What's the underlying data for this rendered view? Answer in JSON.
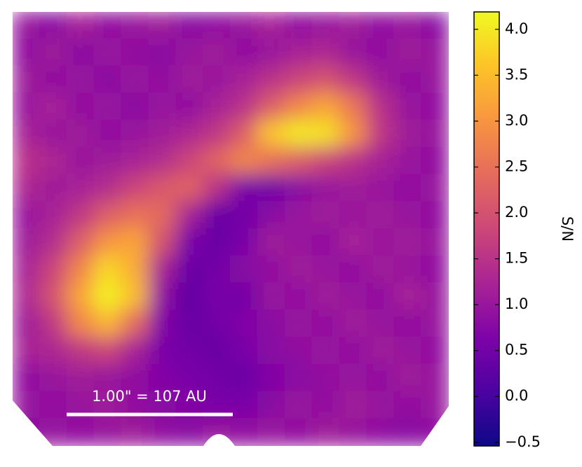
{
  "chart_data": {
    "type": "heatmap",
    "values": [
      [
        1.0,
        0.8,
        1.2,
        0.9,
        1.0,
        1.1,
        0.8,
        0.9,
        1.0,
        1.2,
        0.9,
        1.0,
        1.1,
        0.9,
        1.0,
        0.8
      ],
      [
        0.9,
        1.1,
        0.8,
        1.0,
        0.9,
        0.8,
        1.0,
        1.1,
        0.9,
        1.0,
        1.2,
        1.3,
        1.0,
        0.9,
        1.1,
        1.0
      ],
      [
        1.1,
        0.9,
        1.0,
        0.8,
        1.0,
        0.9,
        1.1,
        1.0,
        1.2,
        1.5,
        1.8,
        2.0,
        1.6,
        1.1,
        0.9,
        1.0
      ],
      [
        1.0,
        1.2,
        0.9,
        1.0,
        0.8,
        1.0,
        0.9,
        1.2,
        1.5,
        2.2,
        2.8,
        3.2,
        2.6,
        1.5,
        1.0,
        0.9
      ],
      [
        1.2,
        1.0,
        1.1,
        0.9,
        1.0,
        1.1,
        1.3,
        1.6,
        2.2,
        3.6,
        4.0,
        3.9,
        3.0,
        1.6,
        1.1,
        1.0
      ],
      [
        1.5,
        1.3,
        1.0,
        1.1,
        1.2,
        1.4,
        1.8,
        2.3,
        2.8,
        2.5,
        2.2,
        1.8,
        1.5,
        1.2,
        1.0,
        0.9
      ],
      [
        1.3,
        1.1,
        1.2,
        1.4,
        1.8,
        2.1,
        2.3,
        1.5,
        0.6,
        0.5,
        0.8,
        1.0,
        1.1,
        1.0,
        0.9,
        1.0
      ],
      [
        1.0,
        1.2,
        1.6,
        2.2,
        2.5,
        2.4,
        1.2,
        0.4,
        0.5,
        0.8,
        1.0,
        1.1,
        1.0,
        1.1,
        1.0,
        0.9
      ],
      [
        1.1,
        1.4,
        2.2,
        3.0,
        3.2,
        2.0,
        0.6,
        0.4,
        0.6,
        1.1,
        1.0,
        0.9,
        1.2,
        1.0,
        1.1,
        1.0
      ],
      [
        1.2,
        1.8,
        2.8,
        3.8,
        3.3,
        1.2,
        0.4,
        0.5,
        0.8,
        0.9,
        1.1,
        1.0,
        0.9,
        1.1,
        1.0,
        0.9
      ],
      [
        1.3,
        2.0,
        3.2,
        4.1,
        3.5,
        0.9,
        0.3,
        0.6,
        0.5,
        1.0,
        0.9,
        1.1,
        1.0,
        0.9,
        1.2,
        1.0
      ],
      [
        1.1,
        1.6,
        2.8,
        3.4,
        2.4,
        0.7,
        0.4,
        0.5,
        0.7,
        0.8,
        1.0,
        0.9,
        1.1,
        1.0,
        0.9,
        1.0
      ],
      [
        1.2,
        1.3,
        1.6,
        1.8,
        1.2,
        0.6,
        0.5,
        0.4,
        0.6,
        0.8,
        0.9,
        1.0,
        0.9,
        1.1,
        1.0,
        0.9
      ],
      [
        0.9,
        1.0,
        1.1,
        1.0,
        0.9,
        0.7,
        0.6,
        0.5,
        0.4,
        0.7,
        0.8,
        0.9,
        1.0,
        0.9,
        1.1,
        1.0
      ],
      [
        1.0,
        0.9,
        1.0,
        1.1,
        0.9,
        0.8,
        0.7,
        0.6,
        0.6,
        0.8,
        1.0,
        0.9,
        1.1,
        1.0,
        0.9,
        1.0
      ],
      [
        0.8,
        1.0,
        0.9,
        1.0,
        1.1,
        0.9,
        0.8,
        1.0,
        0.9,
        1.0,
        0.9,
        1.1,
        1.0,
        0.9,
        0.8,
        0.9
      ]
    ],
    "zlim": [
      -0.54,
      4.19
    ],
    "zticks": [
      {
        "value": -0.5,
        "label": "−0.5"
      },
      {
        "value": 0,
        "label": "0.0"
      },
      0.5,
      {
        "value": 1,
        "label": "1.0"
      },
      1.5,
      {
        "value": 2,
        "label": "2.0"
      },
      2.5,
      {
        "value": 3,
        "label": "3.0"
      },
      3.5,
      {
        "value": 4,
        "label": "4.0"
      }
    ],
    "colorbar_label": "S/N",
    "colorscale": [
      "#0d0887",
      "#4c02a1",
      "#7e03a8",
      "#a92395",
      "#cc4778",
      "#e56b5d",
      "#f89540",
      "#fdc328",
      "#f0f921"
    ],
    "scale_bar_label": "1.00\" = 107 AU"
  }
}
